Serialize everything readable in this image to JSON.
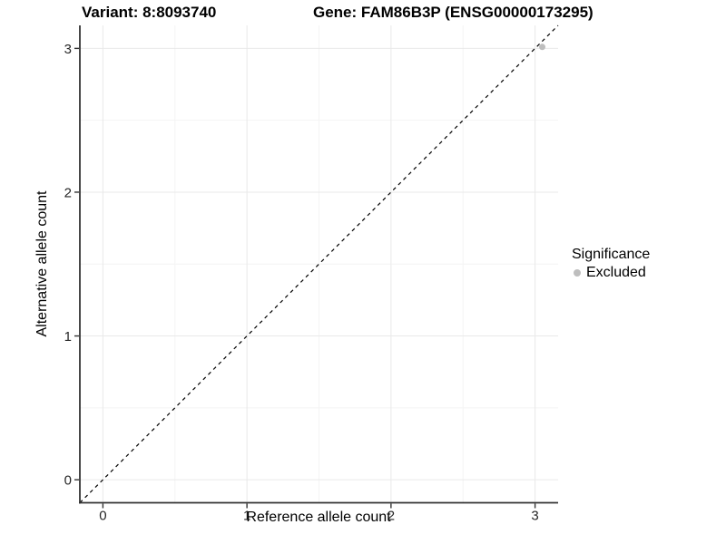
{
  "chart_data": {
    "type": "scatter",
    "title_variant": "Variant: 8:8093740",
    "title_gene": "Gene: FAM86B3P (ENSG00000173295)",
    "xlabel": "Reference allele count",
    "ylabel": "Alternative allele count",
    "xlim": [
      -0.16,
      3.16
    ],
    "ylim": [
      -0.16,
      3.16
    ],
    "xticks": [
      0,
      1,
      2,
      3
    ],
    "yticks": [
      0,
      1,
      2,
      3
    ],
    "xminor": [
      0.5,
      1.5,
      2.5
    ],
    "yminor": [
      0.5,
      1.5,
      2.5
    ],
    "grid": true,
    "legend_position": "right",
    "reference_line": {
      "type": "identity",
      "style": "dashed",
      "color": "#000000",
      "x1": -0.16,
      "y1": -0.16,
      "x2": 3.16,
      "y2": 3.16
    },
    "points": [
      {
        "x": 3.05,
        "y": 3.01,
        "series": "Excluded"
      }
    ],
    "series": [
      {
        "name": "Excluded",
        "color": "#bebebe"
      }
    ],
    "legend": {
      "title": "Significance",
      "items": [
        {
          "label": "Excluded",
          "color": "#bebebe"
        }
      ]
    },
    "colors": {
      "background": "#ffffff",
      "grid_major": "#e9e9e9",
      "grid_minor": "#f4f4f4",
      "axis_line": "#333333",
      "tick_text": "#262626",
      "title_text": "#000000"
    }
  }
}
